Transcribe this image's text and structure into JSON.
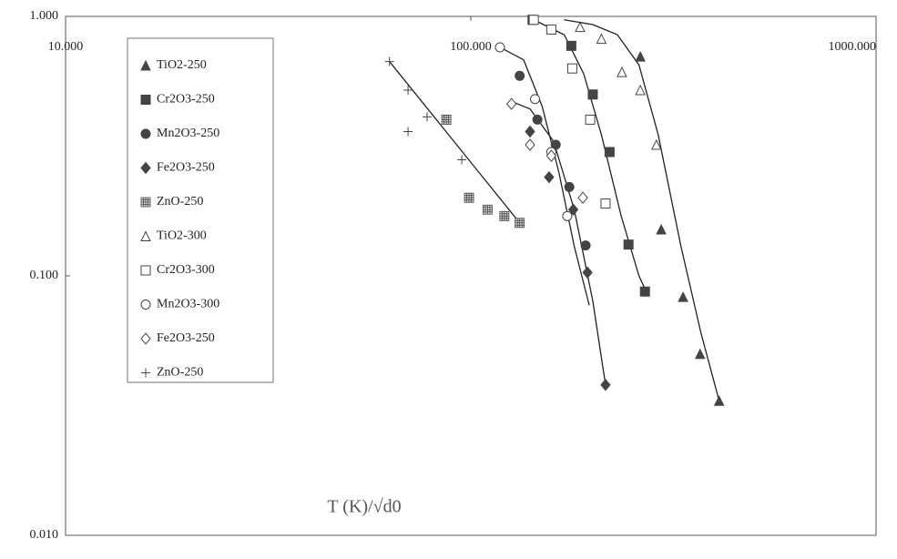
{
  "chart_data": {
    "type": "scatter",
    "x_label": "T (K)/√d0",
    "xscale": "log",
    "yscale": "log",
    "xlim": [
      10,
      1000
    ],
    "ylim": [
      0.01,
      1
    ],
    "xticks": [
      {
        "value": 10,
        "label": "10.000"
      },
      {
        "value": 100,
        "label": "100.000"
      },
      {
        "value": 1000,
        "label": "1000.000"
      }
    ],
    "yticks": [
      {
        "value": 1,
        "label": "1.000"
      },
      {
        "value": 0.1,
        "label": "0.100"
      },
      {
        "value": 0.01,
        "label": "0.010"
      }
    ],
    "series": [
      {
        "name": "TiO2-250",
        "marker": "triangle",
        "color": "#444",
        "x": [
          262,
          295,
          334,
          368,
          410
        ],
        "values": [
          0.7,
          0.151,
          0.083,
          0.05,
          0.033
        ]
      },
      {
        "name": "Cr2O3-250",
        "marker": "square",
        "color": "#444",
        "x": [
          142,
          177,
          200,
          220,
          245,
          269
        ],
        "values": [
          0.97,
          0.77,
          0.5,
          0.3,
          0.132,
          0.087
        ]
      },
      {
        "name": "Mn2O3-250",
        "marker": "circle",
        "color": "#444",
        "x": [
          132,
          146,
          162,
          175,
          192
        ],
        "values": [
          0.59,
          0.4,
          0.32,
          0.22,
          0.131
        ]
      },
      {
        "name": "Fe2O3-250",
        "marker": "diamond",
        "color": "#444",
        "x": [
          140,
          156,
          179,
          194,
          215
        ],
        "values": [
          0.36,
          0.24,
          0.18,
          0.103,
          0.038
        ]
      },
      {
        "name": "ZnO-250",
        "marker": "grid",
        "color": "#444",
        "x": [
          87,
          99,
          110,
          121,
          132
        ],
        "values": [
          0.4,
          0.2,
          0.18,
          0.17,
          0.16
        ]
      },
      {
        "name": "TiO2-300",
        "marker": "triangle-open",
        "color": "#444",
        "x": [
          186,
          210,
          236,
          262,
          287
        ],
        "values": [
          0.91,
          0.82,
          0.61,
          0.52,
          0.32
        ]
      },
      {
        "name": "Cr2O3-300",
        "marker": "square-open",
        "color": "#444",
        "x": [
          143,
          158,
          178,
          197,
          215
        ],
        "values": [
          0.97,
          0.89,
          0.63,
          0.4,
          0.19
        ]
      },
      {
        "name": "Mn2O3-300",
        "marker": "circle-open",
        "color": "#444",
        "x": [
          118,
          144,
          158,
          173
        ],
        "values": [
          0.76,
          0.48,
          0.3,
          0.17
        ]
      },
      {
        "name": "Fe2O3-250",
        "marker": "diamond-open",
        "color": "#444",
        "x": [
          126,
          140,
          158,
          189
        ],
        "values": [
          0.46,
          0.32,
          0.29,
          0.2
        ]
      },
      {
        "name": "ZnO-250",
        "marker": "plus",
        "color": "#444",
        "x": [
          63,
          70,
          78,
          70,
          95
        ],
        "values": [
          0.67,
          0.52,
          0.41,
          0.36,
          0.28
        ]
      }
    ],
    "fit_lines": [
      {
        "color": "#222",
        "x": [
          63,
          132
        ],
        "values": [
          0.67,
          0.16
        ]
      },
      {
        "color": "#222",
        "x": [
          126,
          140,
          160,
          180,
          200,
          215
        ],
        "values": [
          0.47,
          0.44,
          0.33,
          0.18,
          0.08,
          0.038
        ]
      },
      {
        "color": "#222",
        "x": [
          118,
          135,
          150,
          165,
          180,
          196
        ],
        "values": [
          0.76,
          0.68,
          0.45,
          0.25,
          0.13,
          0.077
        ]
      },
      {
        "color": "#222",
        "x": [
          143,
          170,
          190,
          210,
          235,
          260,
          270
        ],
        "values": [
          0.97,
          0.85,
          0.6,
          0.35,
          0.17,
          0.1,
          0.088
        ]
      },
      {
        "color": "#222",
        "x": [
          170,
          200,
          230,
          260,
          290,
          330,
          370,
          410
        ],
        "values": [
          0.97,
          0.93,
          0.85,
          0.65,
          0.35,
          0.13,
          0.06,
          0.033
        ]
      }
    ]
  }
}
